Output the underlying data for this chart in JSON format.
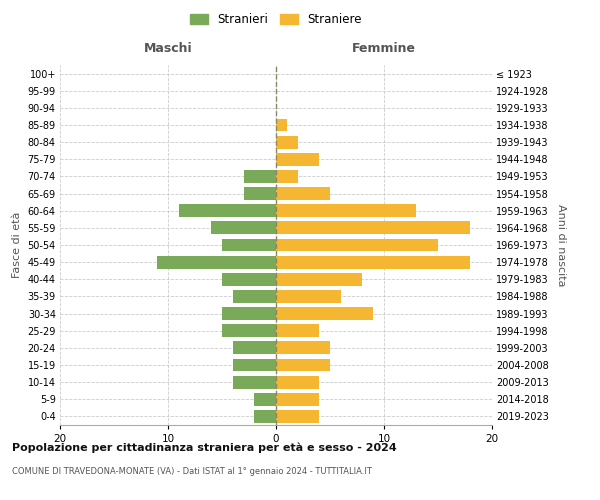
{
  "age_groups": [
    "0-4",
    "5-9",
    "10-14",
    "15-19",
    "20-24",
    "25-29",
    "30-34",
    "35-39",
    "40-44",
    "45-49",
    "50-54",
    "55-59",
    "60-64",
    "65-69",
    "70-74",
    "75-79",
    "80-84",
    "85-89",
    "90-94",
    "95-99",
    "100+"
  ],
  "birth_years": [
    "2019-2023",
    "2014-2018",
    "2009-2013",
    "2004-2008",
    "1999-2003",
    "1994-1998",
    "1989-1993",
    "1984-1988",
    "1979-1983",
    "1974-1978",
    "1969-1973",
    "1964-1968",
    "1959-1963",
    "1954-1958",
    "1949-1953",
    "1944-1948",
    "1939-1943",
    "1934-1938",
    "1929-1933",
    "1924-1928",
    "≤ 1923"
  ],
  "maschi": [
    2,
    2,
    4,
    4,
    4,
    5,
    5,
    4,
    5,
    11,
    5,
    6,
    9,
    3,
    3,
    0,
    0,
    0,
    0,
    0,
    0
  ],
  "femmine": [
    4,
    4,
    4,
    5,
    5,
    4,
    9,
    6,
    8,
    18,
    15,
    18,
    13,
    5,
    2,
    4,
    2,
    1,
    0,
    0,
    0
  ],
  "color_maschi": "#7aaa59",
  "color_femmine": "#f5b731",
  "background_color": "#ffffff",
  "grid_color": "#cccccc",
  "dashed_line_color": "#888866",
  "title_main": "Popolazione per cittadinanza straniera per età e sesso - 2024",
  "title_sub": "COMUNE DI TRAVEDONA-MONATE (VA) - Dati ISTAT al 1° gennaio 2024 - TUTTITALIA.IT",
  "xlabel_maschi": "Maschi",
  "xlabel_femmine": "Femmine",
  "ylabel_left": "Fasce di età",
  "ylabel_right": "Anni di nascita",
  "legend_maschi": "Stranieri",
  "legend_femmine": "Straniere",
  "xlim": 20
}
